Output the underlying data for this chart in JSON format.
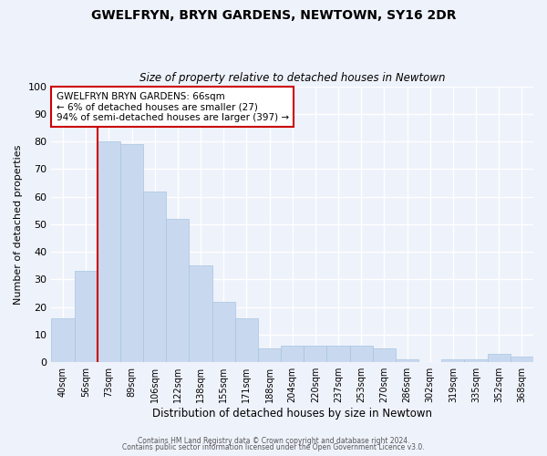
{
  "title": "GWELFRYN, BRYN GARDENS, NEWTOWN, SY16 2DR",
  "subtitle": "Size of property relative to detached houses in Newtown",
  "xlabel": "Distribution of detached houses by size in Newtown",
  "ylabel": "Number of detached properties",
  "bar_color": "#c8d9ef",
  "bar_edge_color": "#a8c4e0",
  "background_color": "#eef2fb",
  "grid_color": "#ffffff",
  "categories": [
    "40sqm",
    "56sqm",
    "73sqm",
    "89sqm",
    "106sqm",
    "122sqm",
    "138sqm",
    "155sqm",
    "171sqm",
    "188sqm",
    "204sqm",
    "220sqm",
    "237sqm",
    "253sqm",
    "270sqm",
    "286sqm",
    "302sqm",
    "319sqm",
    "335sqm",
    "352sqm",
    "368sqm"
  ],
  "values": [
    16,
    33,
    80,
    79,
    62,
    52,
    35,
    22,
    16,
    5,
    6,
    6,
    6,
    6,
    5,
    1,
    0,
    1,
    1,
    3,
    2
  ],
  "ylim": [
    0,
    100
  ],
  "yticks": [
    0,
    10,
    20,
    30,
    40,
    50,
    60,
    70,
    80,
    90,
    100
  ],
  "vline_color": "#cc0000",
  "vline_index": 2,
  "annotation_text": "GWELFRYN BRYN GARDENS: 66sqm\n← 6% of detached houses are smaller (27)\n94% of semi-detached houses are larger (397) →",
  "annotation_box_color": "#ffffff",
  "annotation_box_edge": "#cc0000",
  "footer_line1": "Contains HM Land Registry data © Crown copyright and database right 2024.",
  "footer_line2": "Contains public sector information licensed under the Open Government Licence v3.0."
}
